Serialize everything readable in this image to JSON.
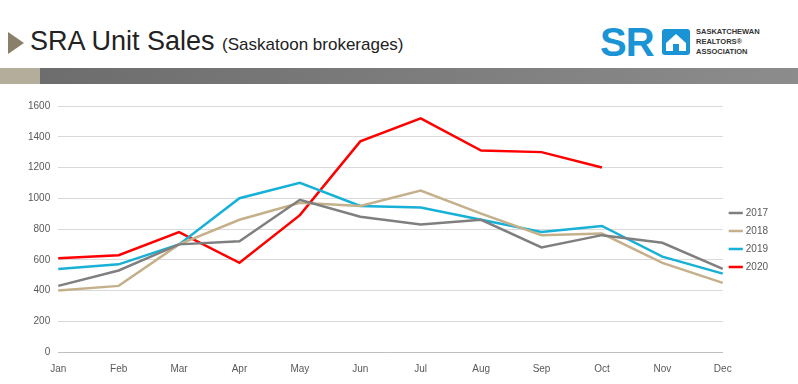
{
  "header": {
    "logo": {
      "mark": "SR",
      "text": [
        "SASKATCHEWAN",
        "REALTORS®",
        "ASSOCIATION"
      ]
    }
  },
  "chart_data": {
    "type": "line",
    "title": "SRA Unit Sales",
    "subtitle": "(Saskatoon brokerages)",
    "categories": [
      "Jan",
      "Feb",
      "Mar",
      "Apr",
      "May",
      "Jun",
      "Jul",
      "Aug",
      "Sep",
      "Oct",
      "Nov",
      "Dec"
    ],
    "series": [
      {
        "name": "2017",
        "color": "#7f7f7f",
        "values": [
          430,
          530,
          700,
          720,
          990,
          880,
          830,
          860,
          680,
          760,
          710,
          540
        ]
      },
      {
        "name": "2018",
        "color": "#c4b08a",
        "values": [
          400,
          430,
          700,
          860,
          970,
          950,
          1050,
          900,
          760,
          770,
          580,
          450
        ]
      },
      {
        "name": "2019",
        "color": "#17b0d6",
        "values": [
          540,
          570,
          700,
          1000,
          1100,
          950,
          940,
          860,
          780,
          820,
          620,
          510
        ]
      },
      {
        "name": "2020",
        "color": "#ff0000",
        "values": [
          610,
          630,
          780,
          580,
          890,
          1370,
          1520,
          1310,
          1300,
          1200,
          null,
          null
        ]
      }
    ],
    "ylim": [
      0,
      1600
    ],
    "yticks": [
      0,
      200,
      400,
      600,
      800,
      1000,
      1200,
      1400,
      1600
    ],
    "grid": true,
    "legend": "right"
  }
}
